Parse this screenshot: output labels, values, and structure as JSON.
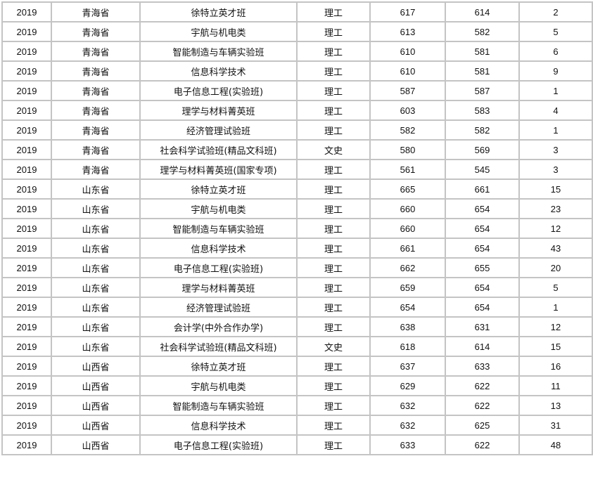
{
  "rows": [
    [
      "2019",
      "青海省",
      "徐特立英才班",
      "理工",
      "617",
      "614",
      "2"
    ],
    [
      "2019",
      "青海省",
      "宇航与机电类",
      "理工",
      "613",
      "582",
      "5"
    ],
    [
      "2019",
      "青海省",
      "智能制造与车辆实验班",
      "理工",
      "610",
      "581",
      "6"
    ],
    [
      "2019",
      "青海省",
      "信息科学技术",
      "理工",
      "610",
      "581",
      "9"
    ],
    [
      "2019",
      "青海省",
      "电子信息工程(实验班)",
      "理工",
      "587",
      "587",
      "1"
    ],
    [
      "2019",
      "青海省",
      "理学与材料菁英班",
      "理工",
      "603",
      "583",
      "4"
    ],
    [
      "2019",
      "青海省",
      "经济管理试验班",
      "理工",
      "582",
      "582",
      "1"
    ],
    [
      "2019",
      "青海省",
      "社会科学试验班(精品文科班)",
      "文史",
      "580",
      "569",
      "3"
    ],
    [
      "2019",
      "青海省",
      "理学与材料菁英班(国家专项)",
      "理工",
      "561",
      "545",
      "3"
    ],
    [
      "2019",
      "山东省",
      "徐特立英才班",
      "理工",
      "665",
      "661",
      "15"
    ],
    [
      "2019",
      "山东省",
      "宇航与机电类",
      "理工",
      "660",
      "654",
      "23"
    ],
    [
      "2019",
      "山东省",
      "智能制造与车辆实验班",
      "理工",
      "660",
      "654",
      "12"
    ],
    [
      "2019",
      "山东省",
      "信息科学技术",
      "理工",
      "661",
      "654",
      "43"
    ],
    [
      "2019",
      "山东省",
      "电子信息工程(实验班)",
      "理工",
      "662",
      "655",
      "20"
    ],
    [
      "2019",
      "山东省",
      "理学与材料菁英班",
      "理工",
      "659",
      "654",
      "5"
    ],
    [
      "2019",
      "山东省",
      "经济管理试验班",
      "理工",
      "654",
      "654",
      "1"
    ],
    [
      "2019",
      "山东省",
      "会计学(中外合作办学)",
      "理工",
      "638",
      "631",
      "12"
    ],
    [
      "2019",
      "山东省",
      "社会科学试验班(精品文科班)",
      "文史",
      "618",
      "614",
      "15"
    ],
    [
      "2019",
      "山西省",
      "徐特立英才班",
      "理工",
      "637",
      "633",
      "16"
    ],
    [
      "2019",
      "山西省",
      "宇航与机电类",
      "理工",
      "629",
      "622",
      "11"
    ],
    [
      "2019",
      "山西省",
      "智能制造与车辆实验班",
      "理工",
      "632",
      "622",
      "13"
    ],
    [
      "2019",
      "山西省",
      "信息科学技术",
      "理工",
      "632",
      "625",
      "31"
    ],
    [
      "2019",
      "山西省",
      "电子信息工程(实验班)",
      "理工",
      "633",
      "622",
      "48"
    ]
  ]
}
